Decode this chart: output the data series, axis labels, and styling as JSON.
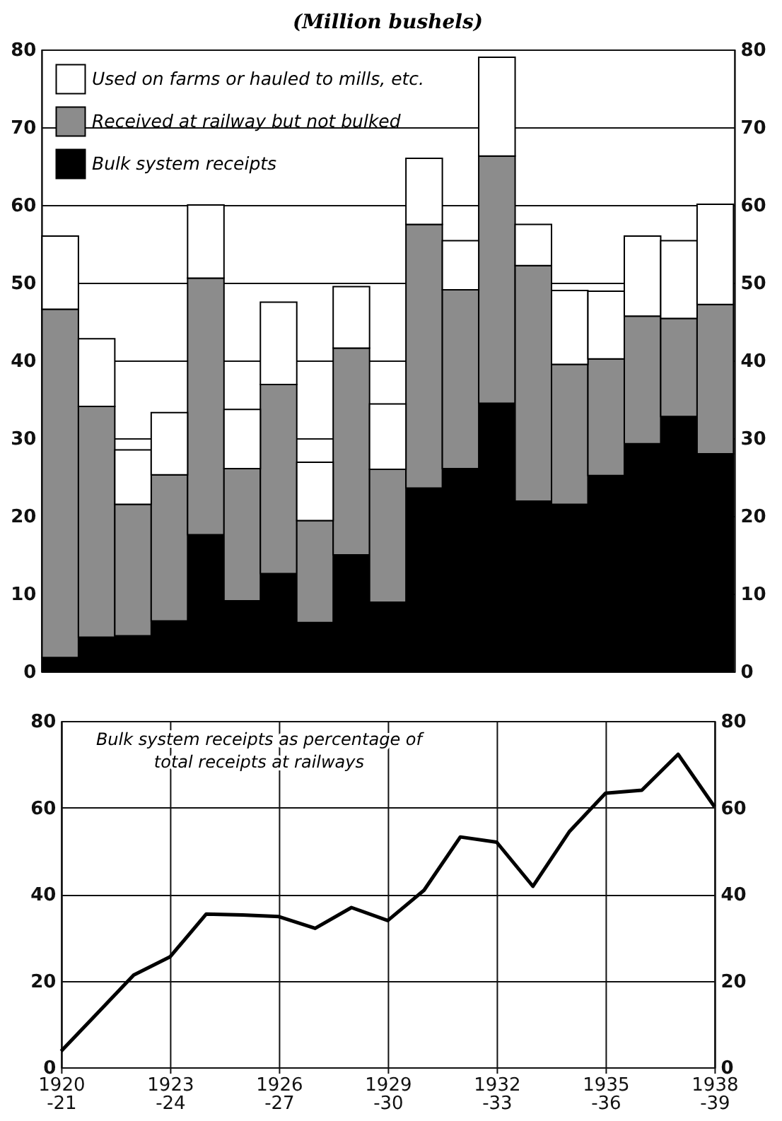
{
  "chart_data": [
    {
      "type": "bar",
      "title": "(Million bushels)",
      "stacked": true,
      "categories": [
        null,
        null,
        null,
        null,
        null,
        null,
        null,
        null,
        null,
        null,
        null,
        null,
        null,
        null,
        null,
        null,
        null,
        null,
        null
      ],
      "series": [
        {
          "name": "Bulk system receipts",
          "color": "#000000",
          "values": [
            1.8,
            4.4,
            4.6,
            6.5,
            17.6,
            9.1,
            12.6,
            6.3,
            15.0,
            8.9,
            23.6,
            26.1,
            34.5,
            21.9,
            21.5,
            25.2,
            29.3,
            32.8,
            28.0
          ]
        },
        {
          "name": "Received at railway but not bulked",
          "color": "#8c8c8c",
          "values": [
            44.8,
            29.7,
            16.9,
            18.8,
            33.0,
            17.0,
            24.3,
            13.1,
            26.6,
            17.1,
            33.9,
            23.0,
            31.8,
            30.3,
            18.0,
            15.0,
            16.4,
            12.6,
            19.2
          ]
        },
        {
          "name": "Used on farms or hauled to mills, etc.",
          "color": "#ffffff",
          "values": [
            9.4,
            8.7,
            7.0,
            8.0,
            9.4,
            7.6,
            10.6,
            7.5,
            7.9,
            8.4,
            8.5,
            6.3,
            12.7,
            5.3,
            9.5,
            8.7,
            10.3,
            10.0,
            12.9
          ]
        }
      ],
      "ylim": [
        0,
        80
      ],
      "yticks": [
        0,
        10,
        20,
        30,
        40,
        50,
        60,
        70,
        80
      ],
      "y2lim": [
        0,
        80
      ],
      "y2ticks": [
        0,
        10,
        20,
        30,
        40,
        50,
        60,
        70,
        80
      ],
      "grid": "y",
      "legend": "top left",
      "tick_labels": "y"
    },
    {
      "type": "line",
      "categories": [
        "1920-21",
        null,
        null,
        "1923-24",
        null,
        null,
        "1926-27",
        null,
        null,
        "1929-30",
        null,
        null,
        "1932-33",
        null,
        null,
        "1935-36",
        null,
        null,
        "1938-39"
      ],
      "values": [
        3.7,
        12.5,
        21.3,
        25.5,
        35.4,
        35.2,
        34.8,
        32.1,
        36.9,
        33.9,
        40.9,
        53.2,
        52.0,
        41.8,
        54.4,
        63.3,
        64.0,
        72.3,
        60.2
      ],
      "color": "#000000",
      "annotations": [
        "Bulk system receipts as percentage of\ntotal receipts at railways"
      ],
      "ylim": [
        0,
        80
      ],
      "yticks": [
        0,
        20,
        40,
        60,
        80
      ],
      "y2lim": [
        0,
        80
      ],
      "y2ticks": [
        0,
        20,
        40,
        60,
        80
      ],
      "grid": true,
      "marker": "none",
      "line_style": "solid"
    }
  ]
}
